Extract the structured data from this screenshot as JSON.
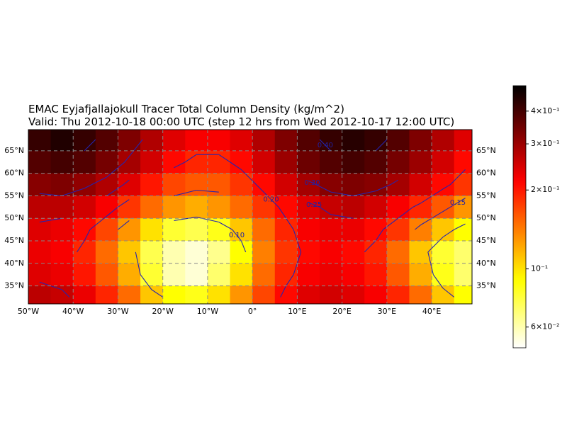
{
  "chart_data": {
    "type": "heatmap",
    "title": "EMAC Eyjafjallajokull Tracer Total Column Density (kg/m^2)",
    "subtitle": "Valid: Thu 2012-10-18 00:00 UTC (step 12 hrs from Wed 2012-10-17 12:00 UTC)",
    "lon": [
      -47.5,
      -42.5,
      -37.5,
      -32.5,
      -27.5,
      -22.5,
      -17.5,
      -12.5,
      -7.5,
      -2.5,
      2.5,
      7.5,
      12.5,
      17.5,
      22.5,
      27.5,
      32.5,
      37.5,
      42.5,
      47.5
    ],
    "lat": [
      67.5,
      62.5,
      57.5,
      52.5,
      47.5,
      42.5,
      37.5,
      32.5
    ],
    "values": [
      [
        0.42,
        0.45,
        0.42,
        0.38,
        0.33,
        0.28,
        0.24,
        0.22,
        0.22,
        0.24,
        0.28,
        0.33,
        0.38,
        0.42,
        0.44,
        0.42,
        0.38,
        0.33,
        0.28,
        0.24
      ],
      [
        0.38,
        0.4,
        0.38,
        0.34,
        0.29,
        0.25,
        0.21,
        0.19,
        0.19,
        0.21,
        0.25,
        0.3,
        0.35,
        0.38,
        0.4,
        0.38,
        0.34,
        0.3,
        0.25,
        0.21
      ],
      [
        0.32,
        0.33,
        0.31,
        0.28,
        0.24,
        0.2,
        0.17,
        0.16,
        0.16,
        0.18,
        0.21,
        0.25,
        0.29,
        0.32,
        0.33,
        0.32,
        0.29,
        0.25,
        0.21,
        0.18
      ],
      [
        0.27,
        0.27,
        0.25,
        0.22,
        0.18,
        0.15,
        0.13,
        0.12,
        0.13,
        0.15,
        0.18,
        0.21,
        0.24,
        0.26,
        0.27,
        0.25,
        0.22,
        0.19,
        0.16,
        0.13
      ],
      [
        0.24,
        0.23,
        0.21,
        0.17,
        0.13,
        0.1,
        0.08,
        0.075,
        0.085,
        0.11,
        0.15,
        0.19,
        0.22,
        0.23,
        0.23,
        0.21,
        0.18,
        0.14,
        0.11,
        0.09
      ],
      [
        0.23,
        0.22,
        0.19,
        0.15,
        0.11,
        0.075,
        0.06,
        0.055,
        0.065,
        0.09,
        0.14,
        0.18,
        0.21,
        0.22,
        0.21,
        0.19,
        0.15,
        0.11,
        0.08,
        0.07
      ],
      [
        0.24,
        0.23,
        0.2,
        0.16,
        0.12,
        0.08,
        0.06,
        0.055,
        0.07,
        0.1,
        0.15,
        0.19,
        0.22,
        0.23,
        0.22,
        0.2,
        0.16,
        0.12,
        0.085,
        0.07
      ],
      [
        0.27,
        0.26,
        0.23,
        0.19,
        0.15,
        0.11,
        0.09,
        0.085,
        0.1,
        0.13,
        0.17,
        0.21,
        0.24,
        0.25,
        0.24,
        0.22,
        0.19,
        0.15,
        0.11,
        0.09
      ]
    ],
    "xlim": [
      -50,
      49
    ],
    "ylim": [
      31,
      69.7
    ],
    "xticks": [
      {
        "value": -50,
        "label": "50°W"
      },
      {
        "value": -40,
        "label": "40°W"
      },
      {
        "value": -30,
        "label": "30°W"
      },
      {
        "value": -20,
        "label": "20°W"
      },
      {
        "value": -10,
        "label": "10°W"
      },
      {
        "value": 0,
        "label": "0°"
      },
      {
        "value": 10,
        "label": "10°E"
      },
      {
        "value": 20,
        "label": "20°E"
      },
      {
        "value": 30,
        "label": "30°E"
      },
      {
        "value": 40,
        "label": "40°E"
      }
    ],
    "yticks": [
      {
        "value": 35,
        "label": "35°N"
      },
      {
        "value": 40,
        "label": "40°N"
      },
      {
        "value": 45,
        "label": "45°N"
      },
      {
        "value": 50,
        "label": "50°N"
      },
      {
        "value": 55,
        "label": "55°N"
      },
      {
        "value": 60,
        "label": "60°N"
      },
      {
        "value": 65,
        "label": "65°N"
      }
    ],
    "clim": [
      0.05,
      0.5
    ],
    "cticks": [
      {
        "value": 0.06,
        "label": "6×10⁻²"
      },
      {
        "value": 0.1,
        "label": "10⁻¹"
      },
      {
        "value": 0.2,
        "label": "2×10⁻¹"
      },
      {
        "value": 0.3,
        "label": "3×10⁻¹"
      },
      {
        "value": 0.4,
        "label": "4×10⁻¹"
      }
    ],
    "colormap": "hot_r",
    "color_log_scale": true,
    "grid": true,
    "contour_levels": [
      {
        "value": 0.1,
        "label": "0.10"
      },
      {
        "value": 0.15,
        "label": "0.15"
      },
      {
        "value": 0.2,
        "label": "0.20"
      },
      {
        "value": 0.25,
        "label": "0.25"
      },
      {
        "value": 0.3,
        "label": "0.30"
      },
      {
        "value": 0.4,
        "label": "0.40"
      }
    ],
    "contour_color": "#2424b0"
  }
}
